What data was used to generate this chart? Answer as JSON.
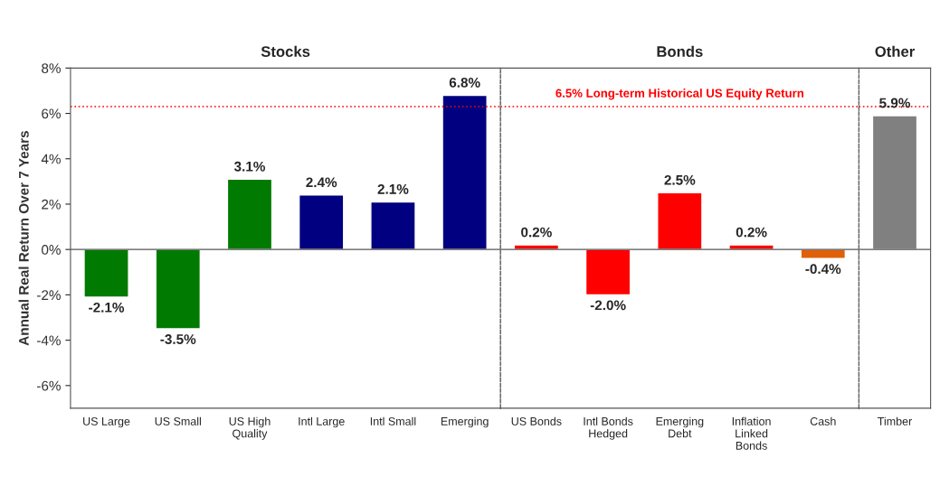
{
  "chart_data": [
    {
      "type": "bar",
      "title": "Stocks",
      "ylabel": "Annual Real Return Over 7 Years",
      "categories": [
        "US Large",
        "US Small",
        "US High\nQuality",
        "Intl Large",
        "Intl Small",
        "Emerging"
      ],
      "values": [
        -2.1,
        -3.5,
        3.1,
        2.4,
        2.1,
        6.8
      ],
      "colors": [
        "#007a00",
        "#007a00",
        "#007a00",
        "#000080",
        "#000080",
        "#000080"
      ],
      "value_labels": [
        "-2.1%",
        "-3.5%",
        "3.1%",
        "2.4%",
        "2.1%",
        "6.8%"
      ],
      "ylim": [
        -7,
        8
      ],
      "yticks": [
        {
          "value": -6,
          "label": "-6%"
        },
        {
          "value": -4,
          "label": "-4%"
        },
        {
          "value": -2,
          "label": "-2%"
        },
        {
          "value": 0,
          "label": "0%"
        },
        {
          "value": 2,
          "label": "2%"
        },
        {
          "value": 4,
          "label": "4%"
        },
        {
          "value": 6,
          "label": "6%"
        },
        {
          "value": 8,
          "label": "8%"
        }
      ],
      "ref_lines": [
        {
          "axis": "y",
          "value": 6.3,
          "color": "#ff0000",
          "line_style": "dotted"
        }
      ]
    },
    {
      "type": "bar",
      "title": "Bonds",
      "categories": [
        "US Bonds",
        "Intl Bonds\nHedged",
        "Emerging\nDebt",
        "Inflation\nLinked\nBonds",
        "Cash"
      ],
      "values": [
        0.2,
        -2.0,
        2.5,
        0.2,
        -0.4
      ],
      "colors": [
        "#ff0000",
        "#ff0000",
        "#ff0000",
        "#ff0000",
        "#e0600a"
      ],
      "value_labels": [
        "0.2%",
        "-2.0%",
        "2.5%",
        "0.2%",
        "-0.4%"
      ],
      "ylim": [
        -7,
        8
      ],
      "tick_labels": "x",
      "ref_lines": [
        {
          "axis": "y",
          "value": 6.3,
          "label": "6.5% Long-term Historical US Equity Return",
          "color": "#ff0000",
          "line_style": "dotted"
        }
      ]
    },
    {
      "type": "bar",
      "title": "Other",
      "categories": [
        "Timber"
      ],
      "values": [
        5.9
      ],
      "colors": [
        "#808080"
      ],
      "value_labels": [
        "5.9%"
      ],
      "ylim": [
        -7,
        8
      ],
      "tick_labels": "x",
      "ref_lines": [
        {
          "axis": "y",
          "value": 6.3,
          "color": "#ff0000",
          "line_style": "dotted"
        }
      ]
    }
  ]
}
